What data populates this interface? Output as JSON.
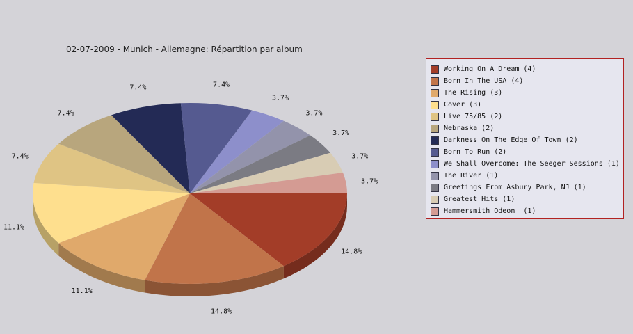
{
  "chart_data": {
    "type": "pie",
    "title": "02-07-2009 - Munich - Allemagne:  Répartition par album",
    "slices": [
      {
        "label": "Working On A Dream (4)",
        "value": 4,
        "pct_label": "14.8%",
        "color": "#a33d28"
      },
      {
        "label": "Born In The USA (4)",
        "value": 4,
        "pct_label": "14.8%",
        "color": "#c1744a"
      },
      {
        "label": "The Rising (3)",
        "value": 3,
        "pct_label": "11.1%",
        "color": "#e0a96b"
      },
      {
        "label": "Cover (3)",
        "value": 3,
        "pct_label": "11.1%",
        "color": "#fedf8e"
      },
      {
        "label": "Live 75/85 (2)",
        "value": 2,
        "pct_label": "7.4%",
        "color": "#dfc484"
      },
      {
        "label": "Nebraska (2)",
        "value": 2,
        "pct_label": "7.4%",
        "color": "#b8a67d"
      },
      {
        "label": "Darkness On The Edge Of Town (2)",
        "value": 2,
        "pct_label": "7.4%",
        "color": "#232a55"
      },
      {
        "label": "Born To Run (2)",
        "value": 2,
        "pct_label": "7.4%",
        "color": "#555a90"
      },
      {
        "label": "We Shall Overcome: The Seeger Sessions (1)",
        "value": 1,
        "pct_label": "3.7%",
        "color": "#8d8fcb"
      },
      {
        "label": "The River (1)",
        "value": 1,
        "pct_label": "3.7%",
        "color": "#9393ab"
      },
      {
        "label": "Greetings From Asbury Park, NJ (1)",
        "value": 1,
        "pct_label": "3.7%",
        "color": "#7b7b83"
      },
      {
        "label": "Greatest Hits (1)",
        "value": 1,
        "pct_label": "3.7%",
        "color": "#d8ccb4"
      },
      {
        "label": "Hammersmith Odeon  (1)",
        "value": 1,
        "pct_label": "3.7%",
        "color": "#d49b93"
      }
    ],
    "legend_position": "right"
  }
}
